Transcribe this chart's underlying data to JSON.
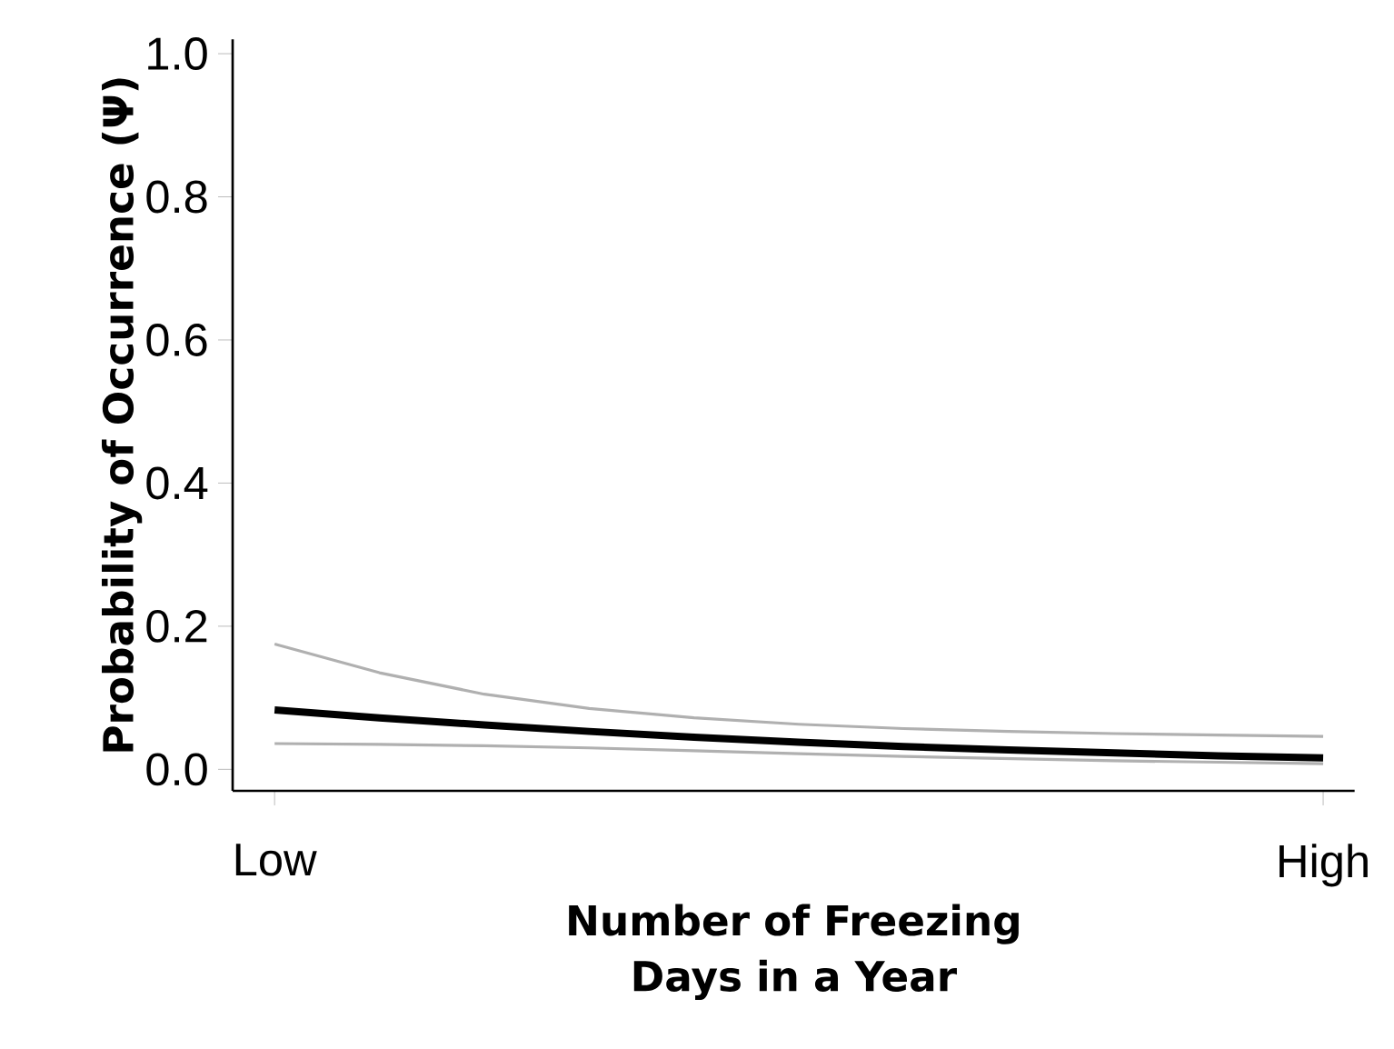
{
  "chart_data": {
    "type": "line",
    "xlabel": "Number of Freezing Days in a Year",
    "ylabel": "Probability of Occurrence (Ψ)",
    "categories": [
      "Low",
      null,
      null,
      null,
      null,
      null,
      null,
      null,
      null,
      null,
      "High"
    ],
    "series": [
      {
        "color": "#b0b0b0",
        "values": [
          0.175,
          0.135,
          0.105,
          0.085,
          0.072,
          0.063,
          0.057,
          0.053,
          0.05,
          0.048,
          0.046
        ]
      },
      {
        "color": "#b0b0b0",
        "values": [
          0.036,
          0.035,
          0.033,
          0.03,
          0.026,
          0.022,
          0.018,
          0.015,
          0.012,
          0.01,
          0.008
        ]
      },
      {
        "color": "#000000",
        "values": [
          0.083,
          0.072,
          0.062,
          0.053,
          0.045,
          0.038,
          0.032,
          0.027,
          0.023,
          0.019,
          0.016
        ]
      }
    ],
    "ylim": [
      -0.03,
      1.02
    ],
    "yticks": [
      {
        "value": 0,
        "label": "0.0"
      },
      0.2,
      0.4,
      0.6,
      0.8,
      {
        "value": 1,
        "label": "1.0"
      }
    ],
    "line_style": "solid"
  }
}
